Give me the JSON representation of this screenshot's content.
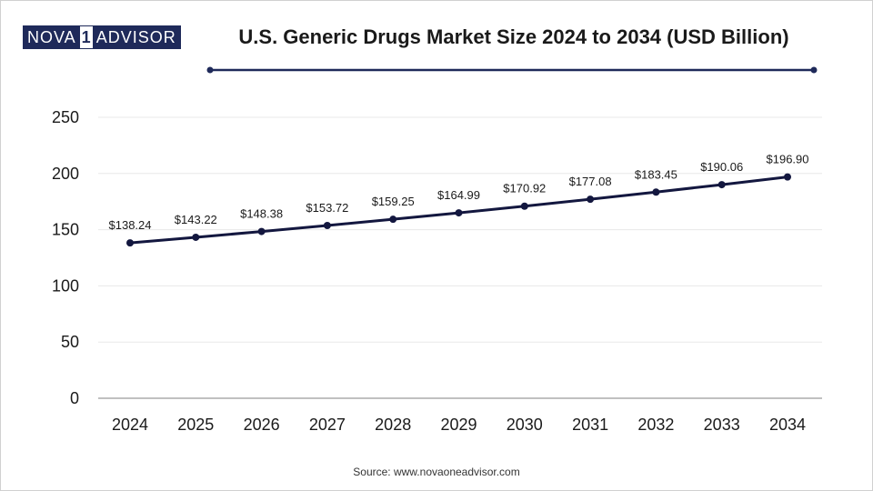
{
  "logo": {
    "part1": "NOVA",
    "mark": "1",
    "part2": "ADVISOR"
  },
  "colors": {
    "line": "#13173f",
    "grid": "#e8e8e8",
    "axis": "#9a9a9a",
    "rule": "#1f2a5a"
  },
  "chart_data": {
    "type": "line",
    "title": "U.S. Generic Drugs Market Size 2024 to 2034 (USD Billion)",
    "categories": [
      "2024",
      "2025",
      "2026",
      "2027",
      "2028",
      "2029",
      "2030",
      "2031",
      "2032",
      "2033",
      "2034"
    ],
    "values": [
      138.24,
      143.22,
      148.38,
      153.72,
      159.25,
      164.99,
      170.92,
      177.08,
      183.45,
      190.06,
      196.9
    ],
    "data_labels": [
      "$138.24",
      "$143.22",
      "$148.38",
      "$153.72",
      "$159.25",
      "$164.99",
      "$170.92",
      "$177.08",
      "$183.45",
      "$190.06",
      "$196.90"
    ],
    "yticks": [
      0,
      50,
      100,
      150,
      200,
      250
    ],
    "ylim": [
      0,
      250
    ],
    "xlabel": "",
    "ylabel": "",
    "grid": true,
    "legend": "none"
  },
  "source": "Source: www.novaoneadvisor.com"
}
